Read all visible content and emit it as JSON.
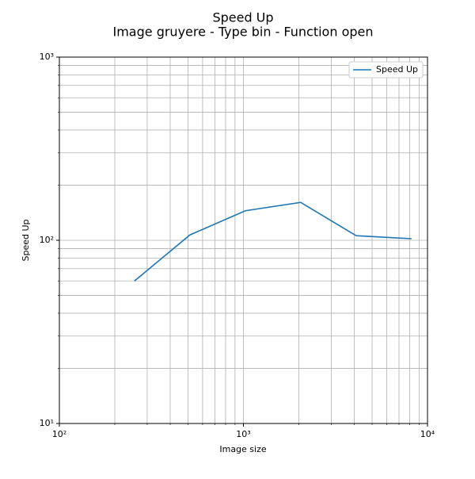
{
  "chart_data": {
    "type": "line",
    "title": "Speed Up",
    "subtitle": "Image gruyere - Type bin - Function open",
    "xlabel": "Image size",
    "ylabel": "Speed Up",
    "x": [
      256,
      512,
      1024,
      2048,
      4096,
      8192
    ],
    "series": [
      {
        "name": "Speed Up",
        "color": "#1f77b4",
        "values": [
          60,
          107,
          145,
          161,
          106,
          102
        ]
      }
    ],
    "xscale": "log",
    "yscale": "log",
    "xlim": [
      100,
      10000
    ],
    "ylim": [
      10,
      1000
    ],
    "xticks": [
      {
        "value": 100,
        "label": "10²"
      },
      {
        "value": 1000,
        "label": "10³"
      },
      {
        "value": 10000,
        "label": "10⁴"
      }
    ],
    "yticks": [
      {
        "value": 10,
        "label": "10¹"
      },
      {
        "value": 100,
        "label": "10²"
      },
      {
        "value": 1000,
        "label": "10³"
      }
    ],
    "xminorticks": [
      200,
      300,
      400,
      500,
      600,
      700,
      800,
      900,
      2000,
      3000,
      4000,
      5000,
      6000,
      7000,
      8000,
      9000
    ],
    "yminorticks": [
      20,
      30,
      40,
      50,
      60,
      70,
      80,
      90,
      200,
      300,
      400,
      500,
      600,
      700,
      800,
      900
    ],
    "grid": true,
    "legend": "upper right"
  }
}
